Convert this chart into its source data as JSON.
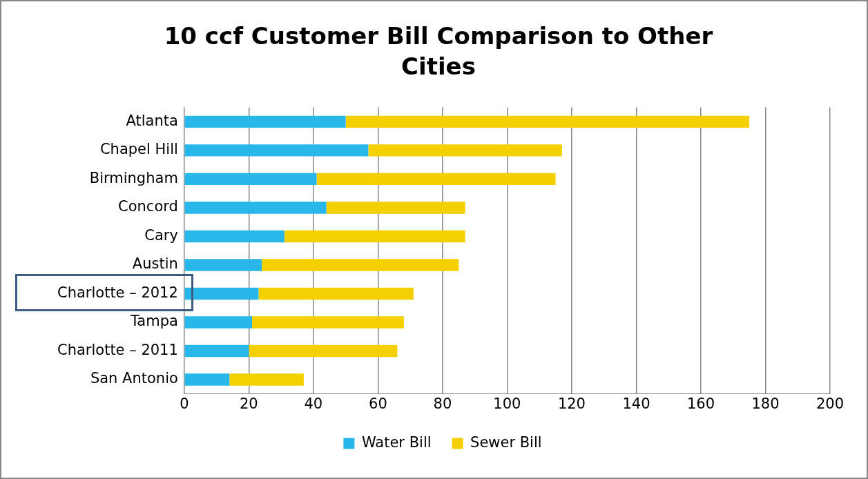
{
  "chart_data": {
    "type": "bar",
    "orientation": "horizontal",
    "stacked": true,
    "title": "10 ccf Customer Bill Comparison to Other Cities",
    "categories": [
      "Atlanta",
      "Chapel Hill",
      "Birmingham",
      "Concord",
      "Cary",
      "Austin",
      "Charlotte – 2012",
      "Tampa",
      "Charlotte – 2011",
      "San Antonio"
    ],
    "series": [
      {
        "name": "Water Bill",
        "color": "#29b6e8",
        "values": [
          50,
          57,
          41,
          44,
          31,
          24,
          23,
          21,
          20,
          14
        ]
      },
      {
        "name": "Sewer Bill",
        "color": "#f5d000",
        "values": [
          125,
          60,
          74,
          43,
          56,
          61,
          48,
          47,
          46,
          23
        ]
      }
    ],
    "xlim": [
      0,
      200
    ],
    "xticks": [
      0,
      20,
      40,
      60,
      80,
      100,
      120,
      140,
      160,
      180,
      200
    ],
    "grid": "x",
    "legend": "bottom"
  }
}
